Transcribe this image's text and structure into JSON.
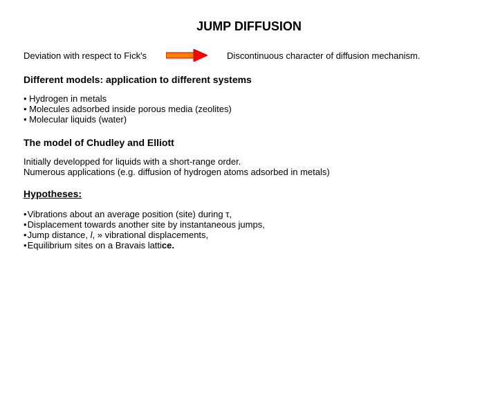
{
  "title": {
    "text": "JUMP DIFFUSION",
    "fontsize": 18,
    "color": "#000000"
  },
  "row": {
    "left": "Deviation with respect to Fick's",
    "right": "Discontinuous character of diffusion mechanism.",
    "fontsize": 13
  },
  "arrow": {
    "width": 60,
    "height": 18,
    "shaft_fill": "#ff7f00",
    "shaft_stroke": "#cc0000",
    "head_fill": "#ff0000",
    "head_stroke": "#cc0000"
  },
  "heading_models": {
    "text": "Different models: application to different systems",
    "fontsize": 14
  },
  "bullets_models": {
    "fontsize": 13,
    "items": [
      "Hydrogen in metals",
      "Molecules adsorbed inside porous media (zeolites)",
      "Molecular liquids (water)"
    ]
  },
  "heading_chudley": {
    "text": "The model of Chudley and Elliott",
    "fontsize": 14
  },
  "para_chudley": {
    "fontsize": 13,
    "line1": "Initially developped for liquids with a short-range order.",
    "line2": "Numerous applications (e.g. diffusion of hydrogen atoms adsorbed in metals)"
  },
  "heading_hyp": {
    "text": "Hypotheses:",
    "fontsize": 14
  },
  "hypotheses": {
    "fontsize": 13,
    "items": [
      {
        "pre": "Vibrations about an average position (site) during ",
        "sym": "τ",
        "post": ","
      },
      {
        "pre": "Displacement towards another site by instantaneous jumps,",
        "sym": "",
        "post": ""
      },
      {
        "pre": "Jump distance, ",
        "sym": "l",
        "post": ",  »  vibrational displacements,"
      },
      {
        "pre": "Equilibrium sites on a Bravais latti",
        "sym": "",
        "post": "",
        "boldend": "ce."
      }
    ]
  },
  "body_bg": "#ffffff",
  "text_color": "#000000"
}
